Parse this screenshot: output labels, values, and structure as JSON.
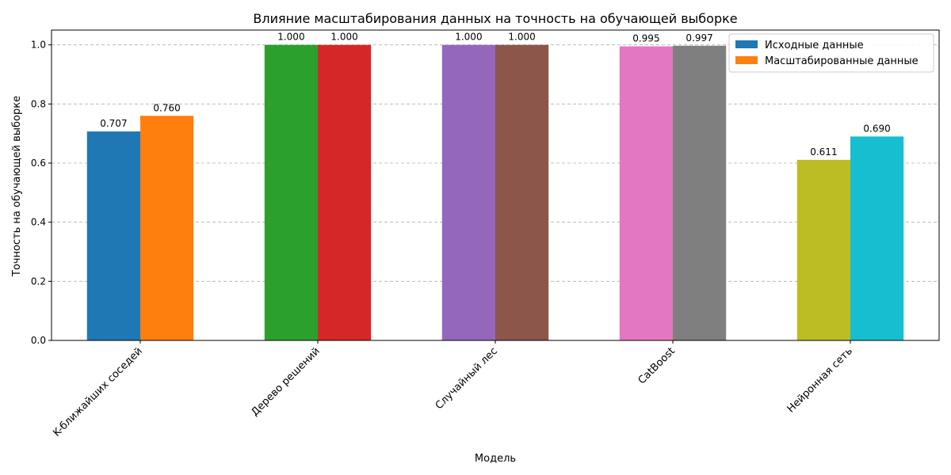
{
  "chart_data": {
    "type": "bar",
    "title": "Влияние масштабирования данных на точность на обучающей выборке",
    "xlabel": "Модель",
    "ylabel": "Точность на обучающей выборке",
    "categories": [
      "K-ближайших соседей",
      "Дерево решений",
      "Случайный лес",
      "CatBoost",
      "Нейронная сеть"
    ],
    "series": [
      {
        "name": "Исходные данные",
        "values": [
          0.707,
          1.0,
          1.0,
          0.995,
          0.611
        ]
      },
      {
        "name": "Масштабированные данные",
        "values": [
          0.76,
          1.0,
          1.0,
          0.997,
          0.69
        ]
      }
    ],
    "data_labels": [
      [
        "0.707",
        "1.000",
        "1.000",
        "0.995",
        "0.611"
      ],
      [
        "0.760",
        "1.000",
        "1.000",
        "0.997",
        "0.690"
      ]
    ],
    "bar_colors": [
      [
        "#1f77b4",
        "#2ca02c",
        "#9467bd",
        "#e377c2",
        "#bcbd22"
      ],
      [
        "#ff7f0e",
        "#d62728",
        "#8c564b",
        "#7f7f7f",
        "#17becf"
      ]
    ],
    "legend_colors": [
      "#1f77b4",
      "#ff7f0e"
    ],
    "ylim": [
      0,
      1.05
    ],
    "yticks": [
      0.0,
      0.2,
      0.4,
      0.6,
      0.8,
      1.0
    ],
    "ytick_labels": [
      "0.0",
      "0.2",
      "0.4",
      "0.6",
      "0.8",
      "1.0"
    ],
    "grid": "y-dashed",
    "legend_position": "top-right"
  }
}
